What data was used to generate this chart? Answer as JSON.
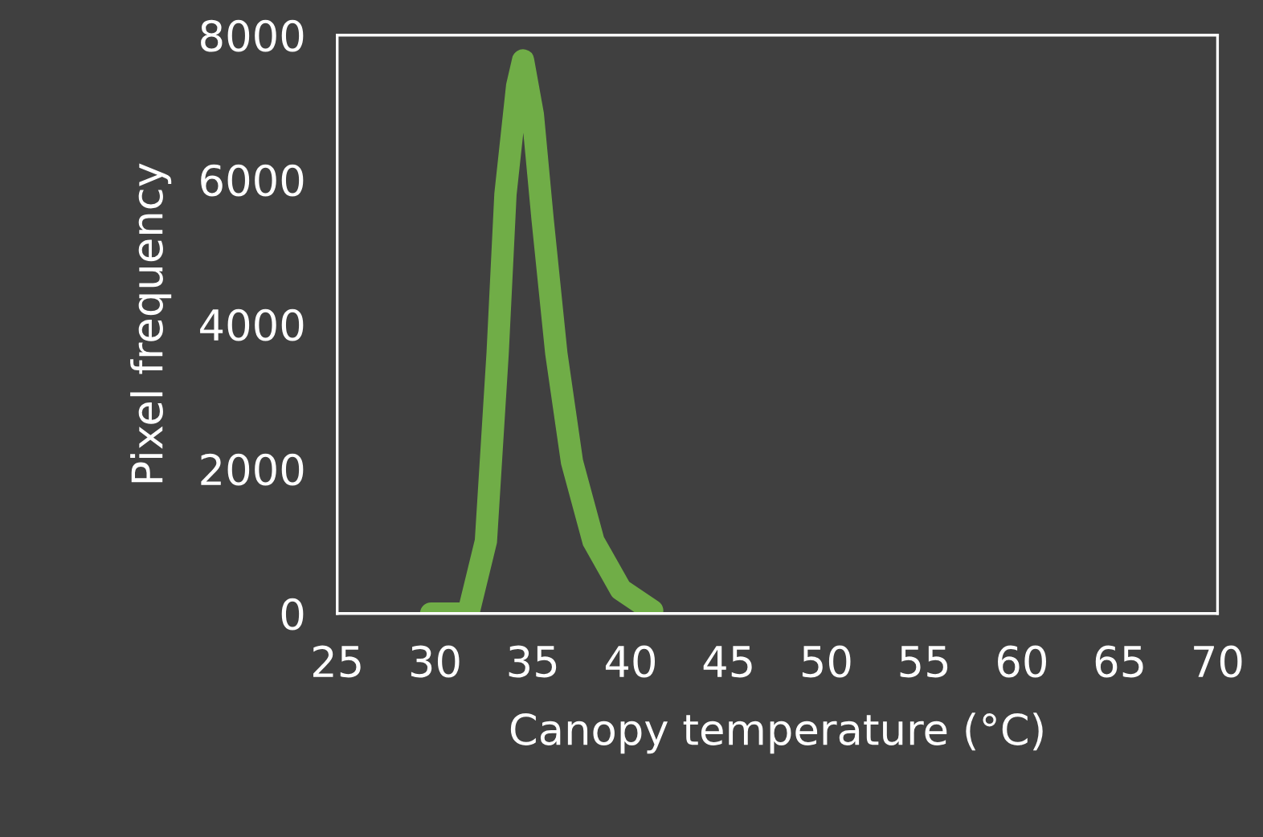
{
  "chart_data": {
    "type": "line",
    "xlabel": "Canopy temperature (°C)",
    "ylabel": "Pixel frequency",
    "series": [
      {
        "color": "#70ad47",
        "x": [
          29.8,
          31.7,
          32.6,
          33.2,
          33.6,
          34.2,
          34.5,
          35.0,
          35.5,
          36.2,
          37.0,
          38.1,
          39.5,
          41.1
        ],
        "values": [
          0,
          0,
          1000,
          3600,
          5800,
          7300,
          7650,
          6900,
          5450,
          3600,
          2100,
          1000,
          330,
          40
        ]
      }
    ],
    "xlim": [
      25,
      70
    ],
    "xticks": [
      25,
      30,
      35,
      40,
      45,
      50,
      55,
      60,
      65,
      70
    ],
    "ylim": [
      0,
      8000
    ],
    "yticks": [
      0,
      2000,
      4000,
      6000,
      8000
    ],
    "grid": false,
    "legend": false,
    "line_style": "solid"
  }
}
